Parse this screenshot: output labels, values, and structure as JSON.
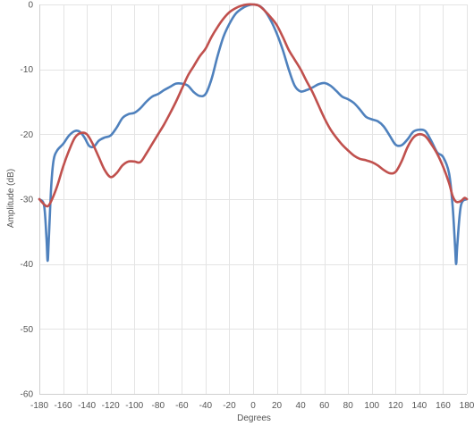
{
  "chart_data": {
    "type": "line",
    "title": "",
    "xlabel": "Degrees",
    "ylabel": "Amplitude (dB)",
    "xlim": [
      -180,
      180
    ],
    "ylim": [
      -60,
      0
    ],
    "x_ticks": [
      -180,
      -160,
      -140,
      -120,
      -100,
      -80,
      -60,
      -40,
      -20,
      0,
      20,
      40,
      60,
      80,
      100,
      120,
      140,
      160,
      180
    ],
    "y_ticks": [
      -60,
      -50,
      -40,
      -30,
      -20,
      -10,
      0
    ],
    "x_tick_labels": [
      "-180",
      "-160",
      "-140",
      "-120",
      "-100",
      "-80",
      "-60",
      "-40",
      "-20",
      "0",
      "20",
      "40",
      "60",
      "80",
      "100",
      "120",
      "140",
      "160",
      "180"
    ],
    "y_tick_labels": [
      "-60",
      "-50",
      "-40",
      "-30",
      "-20",
      "-10",
      "0"
    ],
    "grid": true,
    "legend": "none",
    "series": [
      {
        "color": "#4f81bd",
        "points": [
          [
            -180,
            -30
          ],
          [
            -176,
            -31
          ],
          [
            -174,
            -36
          ],
          [
            -173,
            -39.5
          ],
          [
            -172,
            -36
          ],
          [
            -170,
            -28
          ],
          [
            -168,
            -24
          ],
          [
            -165,
            -22.5
          ],
          [
            -160,
            -21.5
          ],
          [
            -155,
            -20.2
          ],
          [
            -150,
            -19.5
          ],
          [
            -146,
            -19.6
          ],
          [
            -142,
            -20.5
          ],
          [
            -138,
            -21.8
          ],
          [
            -134,
            -21.9
          ],
          [
            -130,
            -21
          ],
          [
            -125,
            -20.5
          ],
          [
            -120,
            -20.2
          ],
          [
            -115,
            -19
          ],
          [
            -110,
            -17.5
          ],
          [
            -105,
            -16.9
          ],
          [
            -100,
            -16.7
          ],
          [
            -95,
            -16
          ],
          [
            -90,
            -15
          ],
          [
            -85,
            -14.2
          ],
          [
            -80,
            -13.8
          ],
          [
            -75,
            -13.2
          ],
          [
            -70,
            -12.7
          ],
          [
            -65,
            -12.2
          ],
          [
            -60,
            -12.2
          ],
          [
            -55,
            -12.5
          ],
          [
            -50,
            -13.5
          ],
          [
            -45,
            -14.1
          ],
          [
            -40,
            -13.8
          ],
          [
            -35,
            -11.5
          ],
          [
            -30,
            -8
          ],
          [
            -25,
            -5
          ],
          [
            -20,
            -3
          ],
          [
            -15,
            -1.5
          ],
          [
            -10,
            -0.7
          ],
          [
            -5,
            -0.2
          ],
          [
            0,
            0
          ],
          [
            5,
            -0.2
          ],
          [
            10,
            -1
          ],
          [
            15,
            -2.5
          ],
          [
            20,
            -4.5
          ],
          [
            25,
            -7
          ],
          [
            30,
            -10
          ],
          [
            35,
            -12.5
          ],
          [
            40,
            -13.4
          ],
          [
            45,
            -13.2
          ],
          [
            50,
            -12.8
          ],
          [
            55,
            -12.3
          ],
          [
            60,
            -12.1
          ],
          [
            65,
            -12.5
          ],
          [
            70,
            -13.3
          ],
          [
            75,
            -14.2
          ],
          [
            80,
            -14.6
          ],
          [
            85,
            -15.2
          ],
          [
            90,
            -16.2
          ],
          [
            95,
            -17.3
          ],
          [
            100,
            -17.7
          ],
          [
            105,
            -18.0
          ],
          [
            110,
            -18.8
          ],
          [
            115,
            -20.2
          ],
          [
            120,
            -21.6
          ],
          [
            125,
            -21.7
          ],
          [
            130,
            -20.8
          ],
          [
            135,
            -19.6
          ],
          [
            140,
            -19.3
          ],
          [
            145,
            -19.5
          ],
          [
            150,
            -21
          ],
          [
            155,
            -22.8
          ],
          [
            160,
            -23.5
          ],
          [
            165,
            -26
          ],
          [
            168,
            -31
          ],
          [
            170,
            -37
          ],
          [
            171,
            -40
          ],
          [
            172,
            -37
          ],
          [
            175,
            -31
          ],
          [
            180,
            -30
          ]
        ]
      },
      {
        "color": "#c0504d",
        "points": [
          [
            -180,
            -30
          ],
          [
            -176,
            -30.8
          ],
          [
            -173,
            -31.1
          ],
          [
            -170,
            -30.3
          ],
          [
            -165,
            -28
          ],
          [
            -160,
            -25
          ],
          [
            -155,
            -22.5
          ],
          [
            -150,
            -20.5
          ],
          [
            -145,
            -19.8
          ],
          [
            -140,
            -20
          ],
          [
            -135,
            -21.5
          ],
          [
            -130,
            -23.5
          ],
          [
            -125,
            -25.5
          ],
          [
            -120,
            -26.6
          ],
          [
            -115,
            -26
          ],
          [
            -110,
            -24.8
          ],
          [
            -105,
            -24.2
          ],
          [
            -100,
            -24.2
          ],
          [
            -95,
            -24.3
          ],
          [
            -90,
            -23
          ],
          [
            -85,
            -21.5
          ],
          [
            -80,
            -20
          ],
          [
            -75,
            -18.5
          ],
          [
            -70,
            -16.8
          ],
          [
            -65,
            -15
          ],
          [
            -60,
            -13
          ],
          [
            -55,
            -11
          ],
          [
            -50,
            -9.5
          ],
          [
            -45,
            -8
          ],
          [
            -40,
            -6.8
          ],
          [
            -35,
            -5
          ],
          [
            -30,
            -3.5
          ],
          [
            -25,
            -2.2
          ],
          [
            -20,
            -1.2
          ],
          [
            -15,
            -0.6
          ],
          [
            -10,
            -0.2
          ],
          [
            -5,
            0
          ],
          [
            0,
            0
          ],
          [
            5,
            -0.2
          ],
          [
            10,
            -1
          ],
          [
            15,
            -2
          ],
          [
            20,
            -3.2
          ],
          [
            25,
            -5
          ],
          [
            30,
            -7
          ],
          [
            35,
            -8.5
          ],
          [
            40,
            -10
          ],
          [
            45,
            -11.8
          ],
          [
            50,
            -13.5
          ],
          [
            55,
            -15.5
          ],
          [
            60,
            -17.5
          ],
          [
            65,
            -19.2
          ],
          [
            70,
            -20.5
          ],
          [
            75,
            -21.6
          ],
          [
            80,
            -22.5
          ],
          [
            85,
            -23.3
          ],
          [
            90,
            -23.8
          ],
          [
            95,
            -24
          ],
          [
            100,
            -24.3
          ],
          [
            105,
            -24.8
          ],
          [
            110,
            -25.5
          ],
          [
            115,
            -26
          ],
          [
            120,
            -25.8
          ],
          [
            125,
            -24.2
          ],
          [
            130,
            -22
          ],
          [
            135,
            -20.5
          ],
          [
            140,
            -20
          ],
          [
            145,
            -20.3
          ],
          [
            150,
            -21.5
          ],
          [
            155,
            -23
          ],
          [
            160,
            -25
          ],
          [
            165,
            -27.5
          ],
          [
            168,
            -29.5
          ],
          [
            171,
            -30.4
          ],
          [
            175,
            -30.3
          ],
          [
            178,
            -29.8
          ],
          [
            180,
            -30
          ]
        ]
      }
    ]
  }
}
